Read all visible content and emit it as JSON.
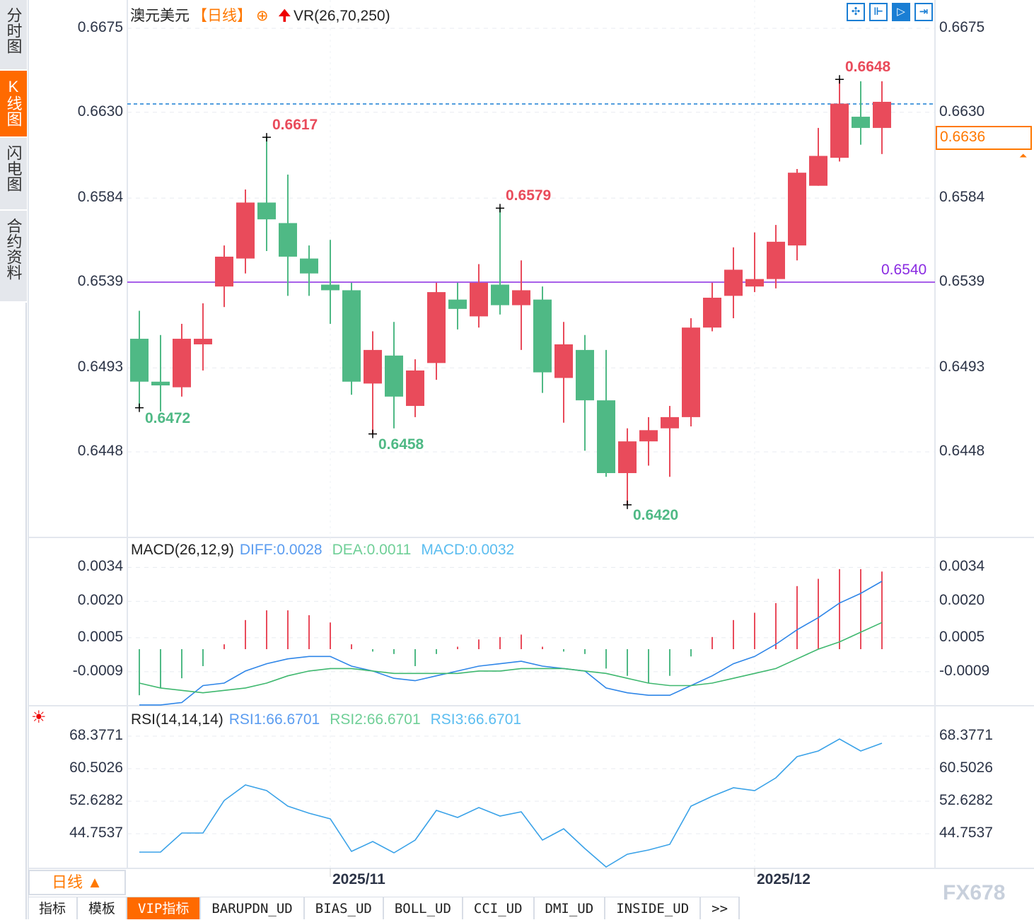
{
  "sidebar": {
    "tabs": [
      {
        "label": "分时图",
        "active": false
      },
      {
        "label": "K线图",
        "active": true
      },
      {
        "label": "闪电图",
        "active": false
      },
      {
        "label": "合约资料",
        "active": false
      }
    ]
  },
  "header": {
    "symbol": "澳元美元",
    "period": "【日线】",
    "add_icon": "circle-plus-icon",
    "indicator_icon": "red-up-arrow-icon",
    "indicator": "VR(26,70,250)"
  },
  "toolbar_icons": [
    "crosshair-icon",
    "range-measure-icon",
    "play-range-icon",
    "jump-to-latest-icon"
  ],
  "colors": {
    "up": "#e94b5b",
    "down": "#4fb985",
    "diff": "#2f86e8",
    "dea": "#3fb86f",
    "macd_label": "#5bbdf0",
    "rsi": "#3aa2e8",
    "ma_line": "#8a2be2",
    "last_price": "#ff7800",
    "last_line": "#1a7ed4"
  },
  "price_axis": {
    "ticks": [
      "0.6675",
      "0.6630",
      "0.6584",
      "0.6539",
      "0.6493",
      "0.6448"
    ]
  },
  "last_price": "0.6636",
  "reference_line": "0.6540",
  "annotations": {
    "highs": [
      {
        "index": 6,
        "label": "0.6617"
      },
      {
        "index": 17,
        "label": "0.6579"
      },
      {
        "index": 33,
        "label": "0.6648"
      }
    ],
    "lows": [
      {
        "index": 0,
        "label": "0.6472"
      },
      {
        "index": 11,
        "label": "0.6458"
      },
      {
        "index": 23,
        "label": "0.6420"
      }
    ]
  },
  "chart_data": [
    {
      "type": "candlestick",
      "title": "澳元美元 日线",
      "x_labels": [
        {
          "index": 9,
          "label": "2025/11"
        },
        {
          "index": 29,
          "label": "2025/12"
        }
      ],
      "ylim": [
        0.64,
        0.668
      ],
      "ohlc": [
        [
          0.6509,
          0.6524,
          0.6472,
          0.6486
        ],
        [
          0.6486,
          0.6511,
          0.647,
          0.6484
        ],
        [
          0.6483,
          0.6517,
          0.6478,
          0.6509
        ],
        [
          0.6506,
          0.6528,
          0.6492,
          0.6509
        ],
        [
          0.6537,
          0.6559,
          0.6526,
          0.6553
        ],
        [
          0.6552,
          0.6589,
          0.6544,
          0.6582
        ],
        [
          0.6582,
          0.6617,
          0.6556,
          0.6573
        ],
        [
          0.6571,
          0.6597,
          0.6532,
          0.6553
        ],
        [
          0.6552,
          0.6559,
          0.6532,
          0.6544
        ],
        [
          0.6538,
          0.6562,
          0.6517,
          0.6535
        ],
        [
          0.6535,
          0.6539,
          0.6479,
          0.6486
        ],
        [
          0.6485,
          0.6513,
          0.6458,
          0.6503
        ],
        [
          0.65,
          0.6518,
          0.6461,
          0.6478
        ],
        [
          0.6473,
          0.6498,
          0.6467,
          0.6492
        ],
        [
          0.6496,
          0.6539,
          0.6487,
          0.6534
        ],
        [
          0.653,
          0.6539,
          0.6514,
          0.6525
        ],
        [
          0.6521,
          0.6549,
          0.6515,
          0.6539
        ],
        [
          0.6538,
          0.6579,
          0.6522,
          0.6527
        ],
        [
          0.6527,
          0.6551,
          0.6503,
          0.6535
        ],
        [
          0.653,
          0.6537,
          0.648,
          0.6491
        ],
        [
          0.6488,
          0.6518,
          0.6464,
          0.6506
        ],
        [
          0.6503,
          0.6511,
          0.6449,
          0.6476
        ],
        [
          0.6476,
          0.6503,
          0.6435,
          0.6437
        ],
        [
          0.6437,
          0.6461,
          0.642,
          0.6454
        ],
        [
          0.6454,
          0.6467,
          0.6441,
          0.646
        ],
        [
          0.6461,
          0.6473,
          0.6435,
          0.6467
        ],
        [
          0.6467,
          0.652,
          0.6462,
          0.6515
        ],
        [
          0.6515,
          0.6539,
          0.6513,
          0.6531
        ],
        [
          0.6532,
          0.6558,
          0.652,
          0.6546
        ],
        [
          0.6537,
          0.6566,
          0.6534,
          0.6541
        ],
        [
          0.6541,
          0.657,
          0.6536,
          0.6561
        ],
        [
          0.6559,
          0.66,
          0.6551,
          0.6598
        ],
        [
          0.6591,
          0.6622,
          0.6591,
          0.6607
        ],
        [
          0.6606,
          0.6648,
          0.6604,
          0.6635
        ],
        [
          0.6628,
          0.6647,
          0.6613,
          0.6622
        ],
        [
          0.6622,
          0.6647,
          0.6608,
          0.6636
        ]
      ]
    },
    {
      "type": "bar+line",
      "title": "MACD(26,12,9)",
      "ticks": [
        "0.0034",
        "0.0020",
        "0.0005",
        "-0.0009"
      ],
      "legend": [
        {
          "label": "DIFF:0.0028"
        },
        {
          "label": "DEA:0.0011"
        },
        {
          "label": "MACD:0.0032"
        }
      ],
      "macd": [
        -0.0019,
        -0.0016,
        -0.0012,
        -0.0007,
        0.0002,
        0.0012,
        0.0016,
        0.0016,
        0.0014,
        0.0011,
        0.0002,
        -0.0001,
        -0.0002,
        -0.0007,
        -0.0002,
        0.0001,
        0.0004,
        0.0005,
        0.0006,
        0.0001,
        -0.0001,
        -0.0002,
        -0.0008,
        -0.0011,
        -0.0014,
        -0.0011,
        -0.0003,
        0.0005,
        0.0012,
        0.0015,
        0.0019,
        0.0026,
        0.0029,
        0.0033,
        0.0033,
        0.0032
      ],
      "diff": [
        -0.0023,
        -0.0023,
        -0.0022,
        -0.0015,
        -0.0014,
        -0.0009,
        -0.0006,
        -0.0004,
        -0.0003,
        -0.0003,
        -0.0007,
        -0.0009,
        -0.0012,
        -0.0013,
        -0.0011,
        -0.0009,
        -0.0007,
        -0.0006,
        -0.0005,
        -0.0007,
        -0.0008,
        -0.0009,
        -0.0016,
        -0.0018,
        -0.0019,
        -0.0019,
        -0.0015,
        -0.0011,
        -0.0006,
        -0.0003,
        0.0002,
        0.0008,
        0.0013,
        0.0019,
        0.0023,
        0.0028
      ],
      "dea": [
        -0.0014,
        -0.0016,
        -0.0017,
        -0.0018,
        -0.0017,
        -0.0016,
        -0.0014,
        -0.0011,
        -0.0009,
        -0.0008,
        -0.0008,
        -0.0009,
        -0.001,
        -0.001,
        -0.001,
        -0.001,
        -0.0009,
        -0.0009,
        -0.0008,
        -0.0008,
        -0.0008,
        -0.0009,
        -0.001,
        -0.0012,
        -0.0014,
        -0.0015,
        -0.0015,
        -0.0014,
        -0.0012,
        -0.001,
        -0.0008,
        -0.0004,
        0.0,
        0.0003,
        0.0007,
        0.0011
      ]
    },
    {
      "type": "line",
      "title": "RSI(14,14,14)",
      "ticks": [
        "68.3771",
        "60.5026",
        "52.6282",
        "44.7537"
      ],
      "legend": [
        {
          "label": "RSI1:66.6701"
        },
        {
          "label": "RSI2:66.6701"
        },
        {
          "label": "RSI3:66.6701"
        }
      ],
      "rsi": [
        40.31,
        40.31,
        44.93,
        44.93,
        52.8,
        56.57,
        55.2,
        51.43,
        49.72,
        48.35,
        40.48,
        42.88,
        40.14,
        43.22,
        50.41,
        48.69,
        51.09,
        49.04,
        50.06,
        43.22,
        45.96,
        41.16,
        36.71,
        39.79,
        40.82,
        42.19,
        51.43,
        53.83,
        55.88,
        55.2,
        58.28,
        63.42,
        64.79,
        67.7,
        64.79,
        66.67
      ]
    }
  ],
  "footer": {
    "period_label": "日线 ▲",
    "tabs": [
      "指标",
      "模板",
      "VIP指标",
      "BARUPDN_UD",
      "BIAS_UD",
      "BOLL_UD",
      "CCI_UD",
      "DMI_UD",
      "INSIDE_UD",
      ">>"
    ],
    "active_tab": 2,
    "watermark": "FX678"
  }
}
